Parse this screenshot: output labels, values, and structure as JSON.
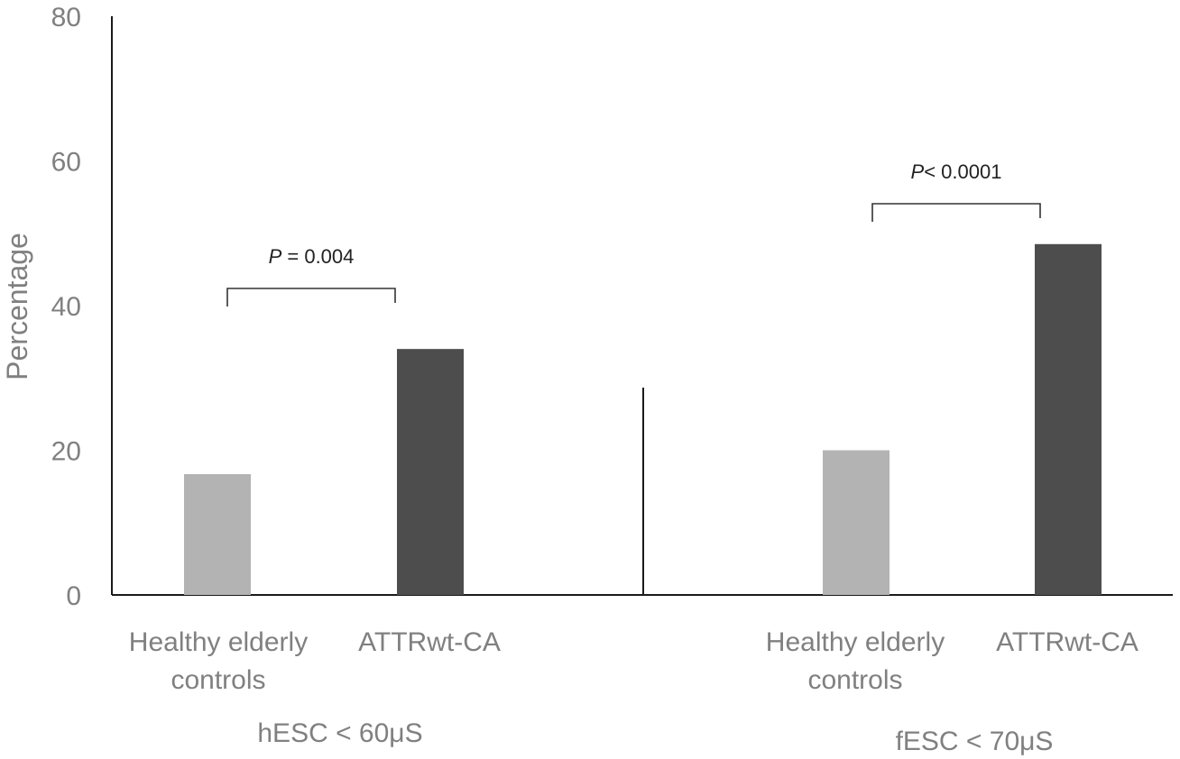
{
  "chart_data": {
    "type": "bar",
    "ylabel": "Percentage",
    "ylim": [
      0,
      80
    ],
    "yticks": [
      0,
      20,
      40,
      60,
      80
    ],
    "grid": false,
    "groups": [
      {
        "label": "hESC < 60μS",
        "categories": [
          "Healthy elderly\ncontrols",
          "ATTRwt-CA"
        ],
        "values": [
          16.7,
          34.0
        ],
        "colors": [
          "#b3b3b3",
          "#4d4d4d"
        ],
        "annotation": {
          "italic": "P",
          "rest": " = 0.004"
        }
      },
      {
        "label": "fESC < 70μS",
        "categories": [
          "Healthy elderly\ncontrols",
          "ATTRwt-CA"
        ],
        "values": [
          20.0,
          48.5
        ],
        "colors": [
          "#b3b3b3",
          "#4d4d4d"
        ],
        "annotation": {
          "italic": "P",
          "rest": "< 0.0001"
        }
      }
    ]
  }
}
